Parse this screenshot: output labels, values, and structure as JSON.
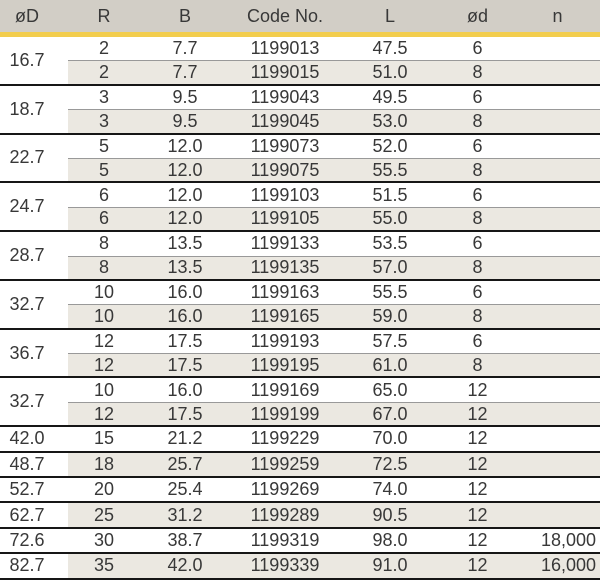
{
  "colors": {
    "header_bg": "#d2cec6",
    "accent_yellow": "#f2cd4d",
    "row_shade": "#ebe8e1",
    "group_divider": "#161616",
    "sub_divider": "#999999",
    "text": "#383838"
  },
  "table": {
    "columns": [
      {
        "key": "oD",
        "label": "øD"
      },
      {
        "key": "R",
        "label": "R"
      },
      {
        "key": "B",
        "label": "B"
      },
      {
        "key": "code",
        "label": "Code No."
      },
      {
        "key": "L",
        "label": "L"
      },
      {
        "key": "od",
        "label": "ød"
      },
      {
        "key": "n",
        "label": "n"
      }
    ],
    "groups": [
      {
        "oD": "16.7",
        "rows": [
          {
            "R": "2",
            "B": "7.7",
            "code": "1199013",
            "L": "47.5",
            "od": "6",
            "n": ""
          },
          {
            "R": "2",
            "B": "7.7",
            "code": "1199015",
            "L": "51.0",
            "od": "8",
            "n": ""
          }
        ]
      },
      {
        "oD": "18.7",
        "rows": [
          {
            "R": "3",
            "B": "9.5",
            "code": "1199043",
            "L": "49.5",
            "od": "6",
            "n": ""
          },
          {
            "R": "3",
            "B": "9.5",
            "code": "1199045",
            "L": "53.0",
            "od": "8",
            "n": ""
          }
        ]
      },
      {
        "oD": "22.7",
        "rows": [
          {
            "R": "5",
            "B": "12.0",
            "code": "1199073",
            "L": "52.0",
            "od": "6",
            "n": ""
          },
          {
            "R": "5",
            "B": "12.0",
            "code": "1199075",
            "L": "55.5",
            "od": "8",
            "n": ""
          }
        ]
      },
      {
        "oD": "24.7",
        "rows": [
          {
            "R": "6",
            "B": "12.0",
            "code": "1199103",
            "L": "51.5",
            "od": "6",
            "n": ""
          },
          {
            "R": "6",
            "B": "12.0",
            "code": "1199105",
            "L": "55.0",
            "od": "8",
            "n": ""
          }
        ]
      },
      {
        "oD": "28.7",
        "rows": [
          {
            "R": "8",
            "B": "13.5",
            "code": "1199133",
            "L": "53.5",
            "od": "6",
            "n": ""
          },
          {
            "R": "8",
            "B": "13.5",
            "code": "1199135",
            "L": "57.0",
            "od": "8",
            "n": ""
          }
        ]
      },
      {
        "oD": "32.7",
        "rows": [
          {
            "R": "10",
            "B": "16.0",
            "code": "1199163",
            "L": "55.5",
            "od": "6",
            "n": ""
          },
          {
            "R": "10",
            "B": "16.0",
            "code": "1199165",
            "L": "59.0",
            "od": "8",
            "n": ""
          }
        ]
      },
      {
        "oD": "36.7",
        "rows": [
          {
            "R": "12",
            "B": "17.5",
            "code": "1199193",
            "L": "57.5",
            "od": "6",
            "n": ""
          },
          {
            "R": "12",
            "B": "17.5",
            "code": "1199195",
            "L": "61.0",
            "od": "8",
            "n": ""
          }
        ]
      },
      {
        "oD": "32.7",
        "rows": [
          {
            "R": "10",
            "B": "16.0",
            "code": "1199169",
            "L": "65.0",
            "od": "12",
            "n": ""
          },
          {
            "R": "12",
            "B": "17.5",
            "code": "1199199",
            "L": "67.0",
            "od": "12",
            "n": ""
          }
        ]
      },
      {
        "oD": "42.0",
        "rows": [
          {
            "R": "15",
            "B": "21.2",
            "code": "1199229",
            "L": "70.0",
            "od": "12",
            "n": ""
          }
        ]
      },
      {
        "oD": "48.7",
        "rows": [
          {
            "R": "18",
            "B": "25.7",
            "code": "1199259",
            "L": "72.5",
            "od": "12",
            "n": ""
          }
        ]
      },
      {
        "oD": "52.7",
        "rows": [
          {
            "R": "20",
            "B": "25.4",
            "code": "1199269",
            "L": "74.0",
            "od": "12",
            "n": ""
          }
        ]
      },
      {
        "oD": "62.7",
        "rows": [
          {
            "R": "25",
            "B": "31.2",
            "code": "1199289",
            "L": "90.5",
            "od": "12",
            "n": ""
          }
        ]
      },
      {
        "oD": "72.6",
        "rows": [
          {
            "R": "30",
            "B": "38.7",
            "code": "1199319",
            "L": "98.0",
            "od": "12",
            "n": "18,000"
          }
        ]
      },
      {
        "oD": "82.7",
        "rows": [
          {
            "R": "35",
            "B": "42.0",
            "code": "1199339",
            "L": "91.0",
            "od": "12",
            "n": "16,000"
          }
        ]
      }
    ]
  }
}
